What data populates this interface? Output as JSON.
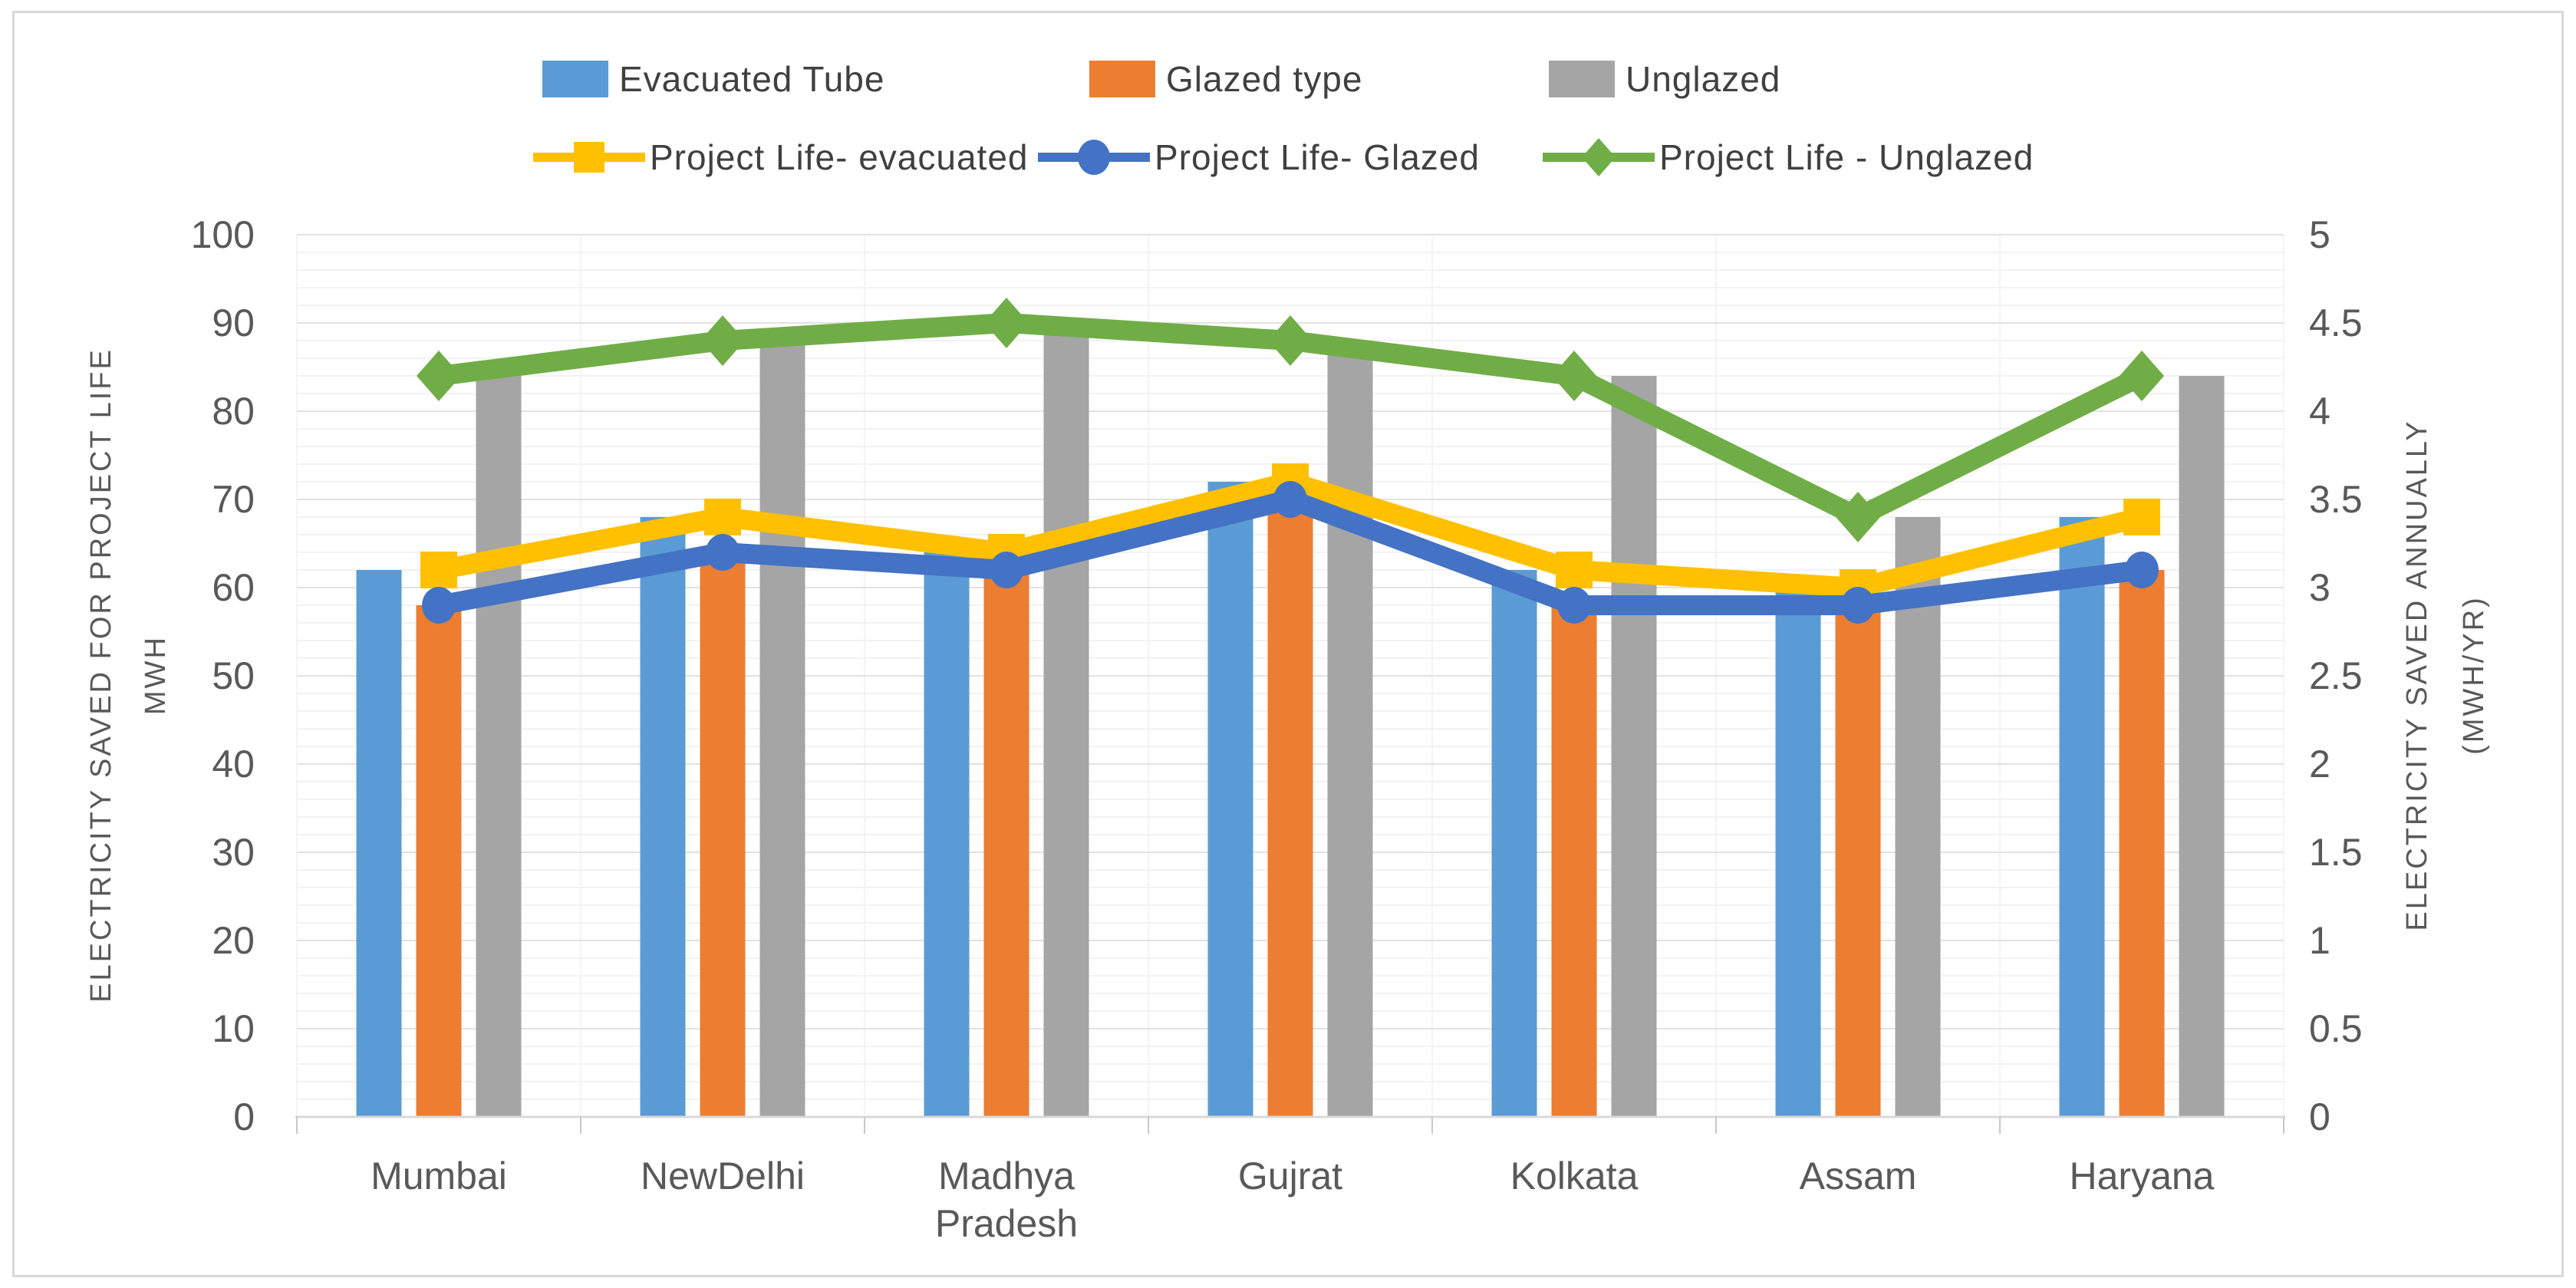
{
  "chart_data": {
    "type": "combo-bar-line",
    "categories": [
      "Mumbai",
      "NewDelhi",
      "Madhya Pradesh",
      "Gujrat",
      "Kolkata",
      "Assam",
      "Haryana"
    ],
    "bar_series": [
      {
        "name": "Evacuated Tube",
        "color": "#5B9BD5",
        "axis": "left",
        "values": [
          62,
          68,
          64,
          72,
          62,
          60,
          68
        ]
      },
      {
        "name": "Glazed type",
        "color": "#ED7D31",
        "axis": "left",
        "values": [
          58,
          64,
          62,
          70,
          58,
          58,
          62
        ]
      },
      {
        "name": "Unglazed",
        "color": "#A5A5A5",
        "axis": "left",
        "values": [
          84,
          88,
          90,
          88,
          84,
          68,
          84
        ]
      }
    ],
    "line_series": [
      {
        "name": "Project Life- evacuated",
        "color": "#FFC000",
        "marker": "square",
        "axis": "right",
        "values": [
          3.1,
          3.4,
          3.2,
          3.6,
          3.1,
          3.0,
          3.4
        ]
      },
      {
        "name": "Project Life- Glazed",
        "color": "#4472C4",
        "marker": "circle",
        "axis": "right",
        "values": [
          2.9,
          3.2,
          3.1,
          3.5,
          2.9,
          2.9,
          3.1
        ]
      },
      {
        "name": "Project Life - Unglazed",
        "color": "#70AD47",
        "marker": "diamond",
        "axis": "right",
        "values": [
          4.2,
          4.4,
          4.5,
          4.4,
          4.2,
          3.4,
          4.2
        ]
      }
    ],
    "left_axis": {
      "label_line1": "ELECTRICITY  SAVED FOR PROJECT LIFE",
      "label_line2": "MWH",
      "min": 0,
      "max": 100,
      "major_step": 10,
      "minor_step": 2,
      "tick_labels": [
        "0",
        "10",
        "20",
        "30",
        "40",
        "50",
        "60",
        "70",
        "80",
        "90",
        "100"
      ]
    },
    "right_axis": {
      "label_line1": "ELECTRICITY  SAVED ANNUALLY",
      "label_line2": "(MWH/YR)",
      "min": 0,
      "max": 5,
      "major_step": 0.5,
      "tick_labels": [
        "0",
        "0.5",
        "1",
        "1.5",
        "2",
        "2.5",
        "3",
        "3.5",
        "4",
        "4.5",
        "5"
      ]
    },
    "grid": {
      "major_color": "#E2E2E2",
      "minor_color": "#F2F2F2",
      "boundary_color": "#F4F4F4",
      "axis_line_color": "#D9D9D9",
      "tick_mark_color": "#C8C8C8",
      "tick_text_color": "#595959"
    },
    "legend_position": "top"
  }
}
